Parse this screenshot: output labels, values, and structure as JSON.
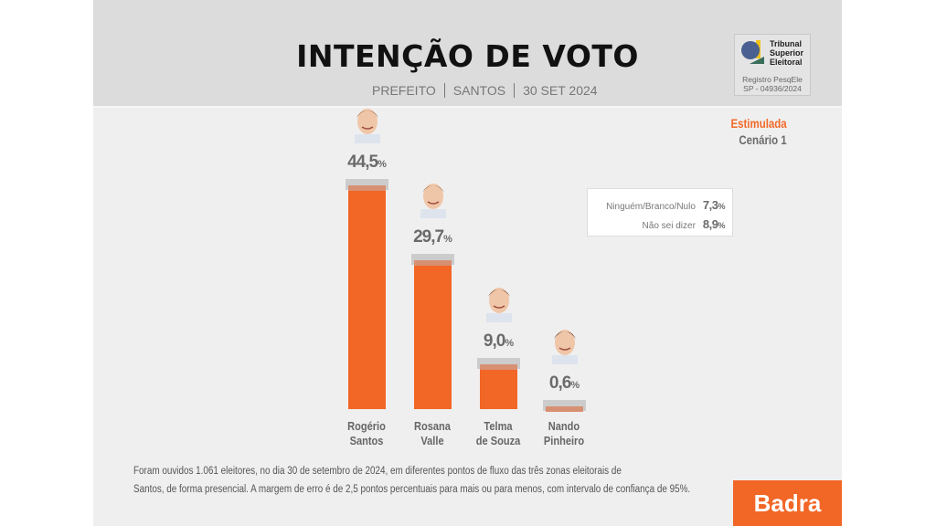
{
  "header": {
    "title": "INTENÇÃO DE VOTO",
    "subtitle": [
      "PREFEITO",
      "SANTOS",
      "30 SET 2024"
    ]
  },
  "tse": {
    "name": [
      "Tribunal",
      "Superior",
      "Eleitoral"
    ],
    "registry": [
      "Registro PesqEle",
      "SP - 04936/2024"
    ]
  },
  "mode": {
    "type": "Estimulada",
    "scenario": "Cenário 1"
  },
  "legend": [
    {
      "label": "Ninguém/Branco/Nulo",
      "value": "7,3",
      "unit": "%"
    },
    {
      "label": "Não sei dizer",
      "value": "8,9",
      "unit": "%"
    }
  ],
  "chart_data": {
    "type": "bar",
    "title": "INTENÇÃO DE VOTO",
    "categories": [
      "Rogério Santos",
      "Rosana Valle",
      "Telma de Souza",
      "Nando Pinheiro"
    ],
    "name_lines": [
      [
        "Rogério",
        "Santos"
      ],
      [
        "Rosana",
        "Valle"
      ],
      [
        "Telma",
        "de Souza"
      ],
      [
        "Nando",
        "Pinheiro"
      ]
    ],
    "values": [
      44.5,
      29.7,
      9.0,
      0.6
    ],
    "labels": [
      "44,5",
      "29,7",
      "9,0",
      "0,6"
    ],
    "unit": "%",
    "color": "#f26626",
    "ylim": [
      0,
      50
    ]
  },
  "footer": {
    "note_lines": [
      "Foram ouvidos 1.061 eleitores, no dia 30 de setembro de 2024, em diferentes pontos de fluxo das três zonas eleitorais de",
      "Santos, de forma presencial. A margem de erro é de 2,5 pontos percentuais para mais ou para menos, com intervalo de confiança de 95%."
    ],
    "logo": "Badra"
  }
}
